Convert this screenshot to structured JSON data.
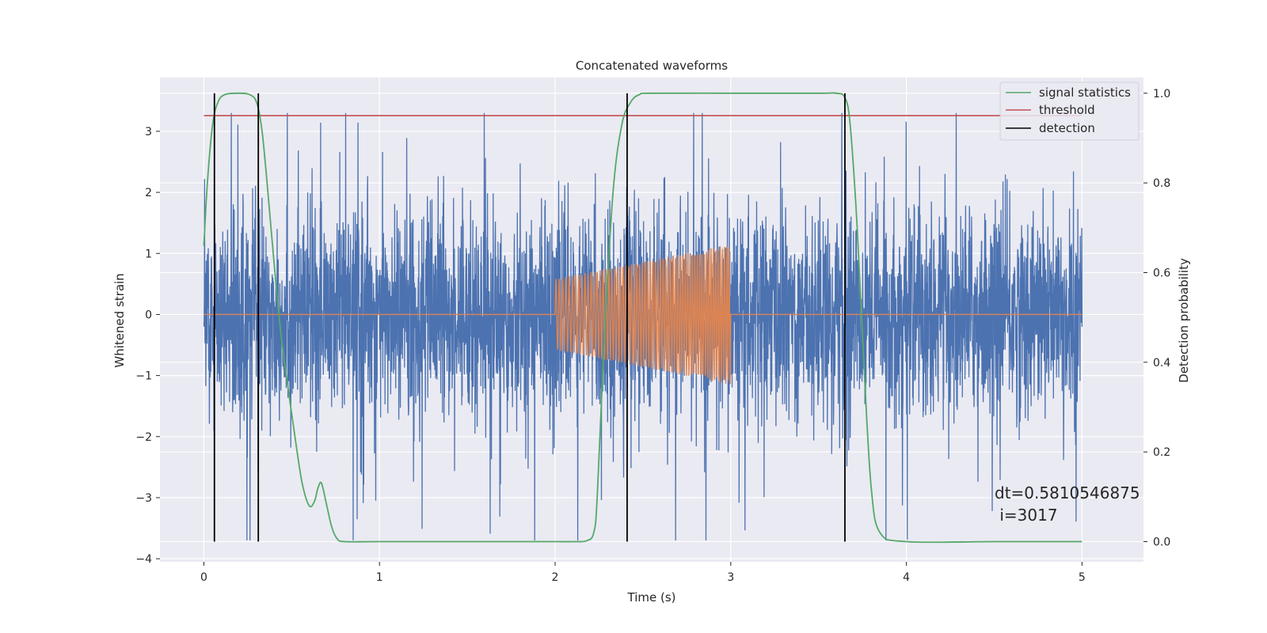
{
  "chart_data": {
    "type": "line",
    "title": "Concatenated waveforms",
    "xlabel": "Time (s)",
    "ylabel": "Whitened strain",
    "ylabel_right": "Detection probability",
    "xlim": [
      -0.25,
      5.35
    ],
    "ylim": [
      -4.05,
      3.88
    ],
    "ylim_right": [
      -0.045,
      1.035
    ],
    "x_ticks": [
      0,
      1,
      2,
      3,
      4,
      5
    ],
    "y_ticks": [
      -4,
      -3,
      -2,
      -1,
      0,
      1,
      2,
      3
    ],
    "y_right_ticks": [
      0.0,
      0.2,
      0.4,
      0.6,
      0.8,
      1.0
    ],
    "grid": true,
    "legend_position": "top-right",
    "legend": [
      {
        "label": "signal statistics",
        "color": "#55a868"
      },
      {
        "label": "threshold",
        "color": "#c44e52"
      },
      {
        "label": "detection",
        "color": "#000000"
      }
    ],
    "series": [
      {
        "role": "noisy-strain",
        "color": "#4c72b0",
        "x_range": [
          0,
          5
        ],
        "typical_amplitude": 1.3,
        "peak_amplitude": 3.3,
        "min_value": -3.7
      },
      {
        "role": "injected-signal",
        "color": "#dd8452",
        "x_range": [
          0,
          5
        ],
        "chirp_start": 2.0,
        "chirp_end": 3.0,
        "amplitude_start": 0.58,
        "amplitude_end": 1.15
      },
      {
        "name": "signal statistics",
        "color": "#55a868",
        "axis": "right",
        "x": [
          0,
          0.02,
          0.05,
          0.08,
          0.12,
          0.2,
          0.26,
          0.3,
          0.33,
          0.36,
          0.4,
          0.44,
          0.48,
          0.52,
          0.56,
          0.6,
          0.63,
          0.65,
          0.67,
          0.7,
          0.73,
          0.76,
          0.8,
          1.0,
          1.5,
          2.0,
          2.1,
          2.18,
          2.22,
          2.24,
          2.28,
          2.33,
          2.38,
          2.43,
          2.48,
          2.55,
          3.0,
          3.5,
          3.6,
          3.65,
          3.68,
          3.72,
          3.76,
          3.8,
          3.85,
          4.0,
          4.5,
          5.0
        ],
        "y": [
          0.66,
          0.8,
          0.93,
          0.98,
          0.997,
          1.0,
          0.997,
          0.98,
          0.92,
          0.8,
          0.62,
          0.46,
          0.34,
          0.23,
          0.13,
          0.08,
          0.09,
          0.12,
          0.13,
          0.08,
          0.03,
          0.006,
          0.0,
          0.0,
          0.0,
          0.0,
          0.0,
          0.002,
          0.02,
          0.1,
          0.45,
          0.78,
          0.93,
          0.98,
          0.997,
          1.0,
          1.0,
          1.0,
          1.0,
          0.99,
          0.93,
          0.7,
          0.38,
          0.12,
          0.02,
          0.0,
          0.0,
          0.0
        ]
      },
      {
        "name": "threshold",
        "color": "#c44e52",
        "axis": "right",
        "x": [
          0,
          5
        ],
        "y": [
          0.95,
          0.95
        ]
      }
    ],
    "detections": {
      "name": "detection",
      "color": "#000000",
      "x": [
        0.06,
        0.31,
        2.41,
        3.65
      ],
      "y_range_right": [
        0.0,
        1.0
      ]
    },
    "annotation": {
      "line1": "dt=0.5810546875",
      "line2": " i=3017"
    }
  },
  "colors": {
    "plot_bg": "#eaeaf2",
    "grid": "#ffffff",
    "text": "#262626"
  }
}
